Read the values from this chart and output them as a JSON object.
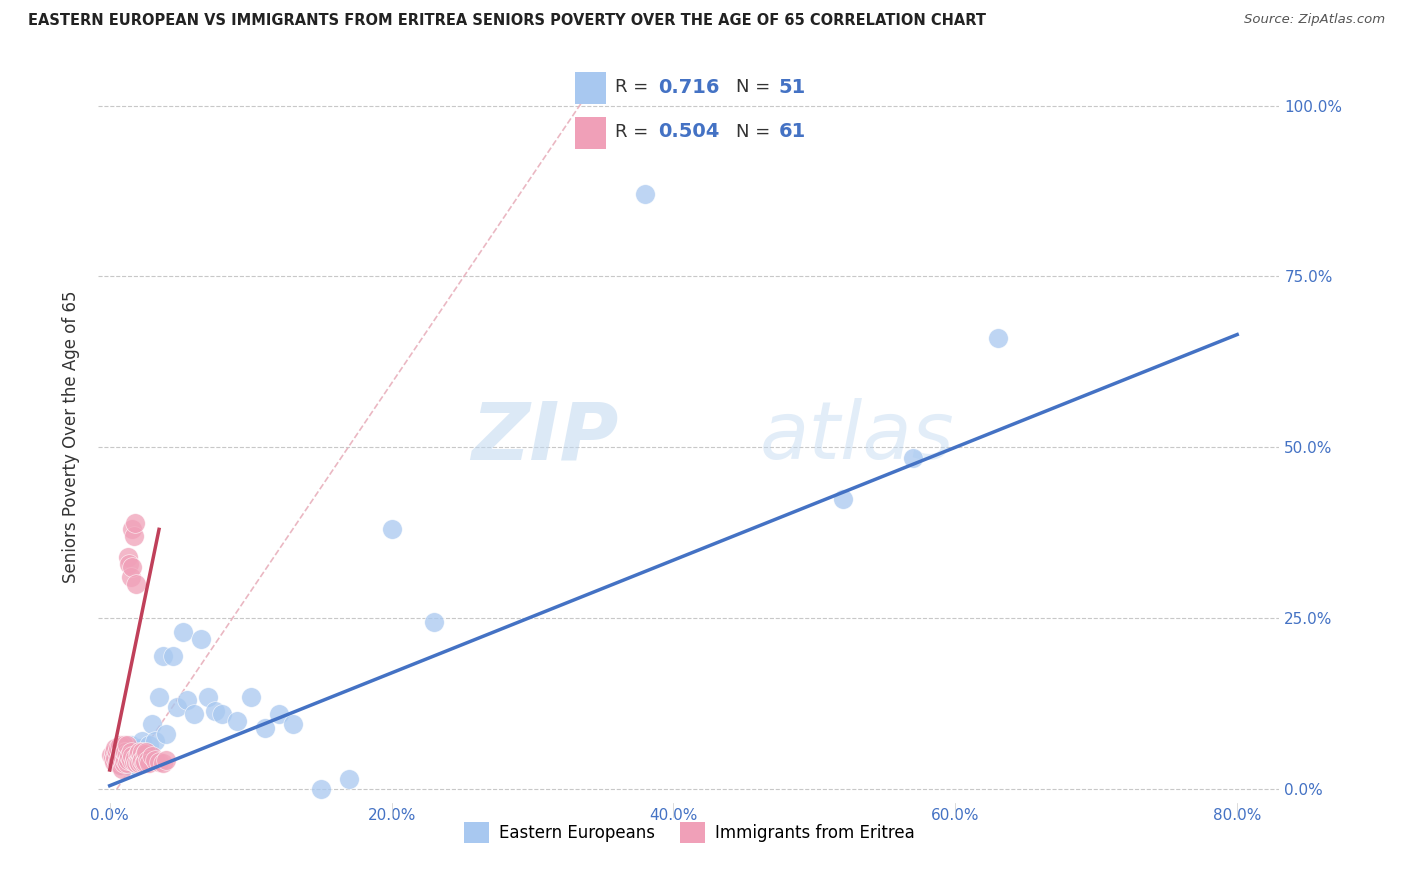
{
  "title": "EASTERN EUROPEAN VS IMMIGRANTS FROM ERITREA SENIORS POVERTY OVER THE AGE OF 65 CORRELATION CHART",
  "source": "Source: ZipAtlas.com",
  "ylabel": "Seniors Poverty Over the Age of 65",
  "blue_color": "#a8c8f0",
  "pink_color": "#f0a0b8",
  "blue_line_color": "#4472c4",
  "pink_line_color": "#c0405a",
  "diag_color": "#e8b0bc",
  "blue_R": "0.716",
  "blue_N": "51",
  "pink_R": "0.504",
  "pink_N": "61",
  "legend_label_blue": "Eastern Europeans",
  "legend_label_pink": "Immigrants from Eritrea",
  "watermark_zip": "ZIP",
  "watermark_atlas": "atlas",
  "ytick_values": [
    0.0,
    0.25,
    0.5,
    0.75,
    1.0
  ],
  "ytick_labels": [
    "0.0%",
    "25.0%",
    "50.0%",
    "75.0%",
    "100.0%"
  ],
  "xtick_values": [
    0.0,
    0.2,
    0.4,
    0.6,
    0.8
  ],
  "xtick_labels": [
    "0.0%",
    "20.0%",
    "40.0%",
    "60.0%",
    "80.0%"
  ],
  "xlim": [
    -0.008,
    0.83
  ],
  "ylim": [
    -0.02,
    1.05
  ],
  "blue_x": [
    0.003,
    0.005,
    0.006,
    0.007,
    0.008,
    0.009,
    0.01,
    0.011,
    0.012,
    0.013,
    0.014,
    0.015,
    0.016,
    0.017,
    0.018,
    0.019,
    0.02,
    0.021,
    0.022,
    0.023,
    0.024,
    0.025,
    0.027,
    0.028,
    0.03,
    0.032,
    0.035,
    0.038,
    0.04,
    0.045,
    0.048,
    0.052,
    0.055,
    0.06,
    0.065,
    0.07,
    0.075,
    0.08,
    0.09,
    0.1,
    0.11,
    0.12,
    0.13,
    0.15,
    0.17,
    0.2,
    0.23,
    0.38,
    0.52,
    0.57,
    0.63
  ],
  "blue_y": [
    0.05,
    0.04,
    0.06,
    0.035,
    0.045,
    0.055,
    0.04,
    0.06,
    0.035,
    0.05,
    0.045,
    0.065,
    0.04,
    0.055,
    0.035,
    0.05,
    0.04,
    0.06,
    0.05,
    0.07,
    0.04,
    0.055,
    0.05,
    0.065,
    0.095,
    0.07,
    0.135,
    0.195,
    0.08,
    0.195,
    0.12,
    0.23,
    0.13,
    0.11,
    0.22,
    0.135,
    0.115,
    0.11,
    0.1,
    0.135,
    0.09,
    0.11,
    0.095,
    0.0,
    0.015,
    0.38,
    0.245,
    0.87,
    0.425,
    0.485,
    0.66
  ],
  "pink_x": [
    0.001,
    0.002,
    0.003,
    0.003,
    0.004,
    0.004,
    0.005,
    0.005,
    0.006,
    0.006,
    0.007,
    0.007,
    0.007,
    0.008,
    0.008,
    0.008,
    0.009,
    0.009,
    0.01,
    0.01,
    0.01,
    0.011,
    0.011,
    0.012,
    0.012,
    0.012,
    0.013,
    0.013,
    0.014,
    0.014,
    0.015,
    0.015,
    0.015,
    0.016,
    0.016,
    0.016,
    0.017,
    0.017,
    0.018,
    0.018,
    0.019,
    0.019,
    0.02,
    0.02,
    0.021,
    0.021,
    0.022,
    0.022,
    0.023,
    0.023,
    0.024,
    0.025,
    0.025,
    0.026,
    0.027,
    0.028,
    0.03,
    0.032,
    0.035,
    0.038,
    0.04
  ],
  "pink_y": [
    0.05,
    0.045,
    0.055,
    0.04,
    0.045,
    0.06,
    0.038,
    0.055,
    0.042,
    0.06,
    0.035,
    0.05,
    0.065,
    0.04,
    0.055,
    0.042,
    0.03,
    0.048,
    0.055,
    0.038,
    0.065,
    0.042,
    0.055,
    0.038,
    0.052,
    0.065,
    0.042,
    0.34,
    0.048,
    0.33,
    0.055,
    0.31,
    0.042,
    0.325,
    0.048,
    0.38,
    0.04,
    0.37,
    0.045,
    0.39,
    0.038,
    0.3,
    0.052,
    0.04,
    0.055,
    0.038,
    0.048,
    0.04,
    0.055,
    0.042,
    0.038,
    0.052,
    0.04,
    0.055,
    0.042,
    0.038,
    0.048,
    0.042,
    0.04,
    0.038,
    0.042
  ],
  "blue_line_x": [
    0.0,
    0.8
  ],
  "blue_line_y": [
    0.005,
    0.665
  ],
  "pink_line_x": [
    0.0,
    0.035
  ],
  "pink_line_y": [
    0.028,
    0.38
  ]
}
